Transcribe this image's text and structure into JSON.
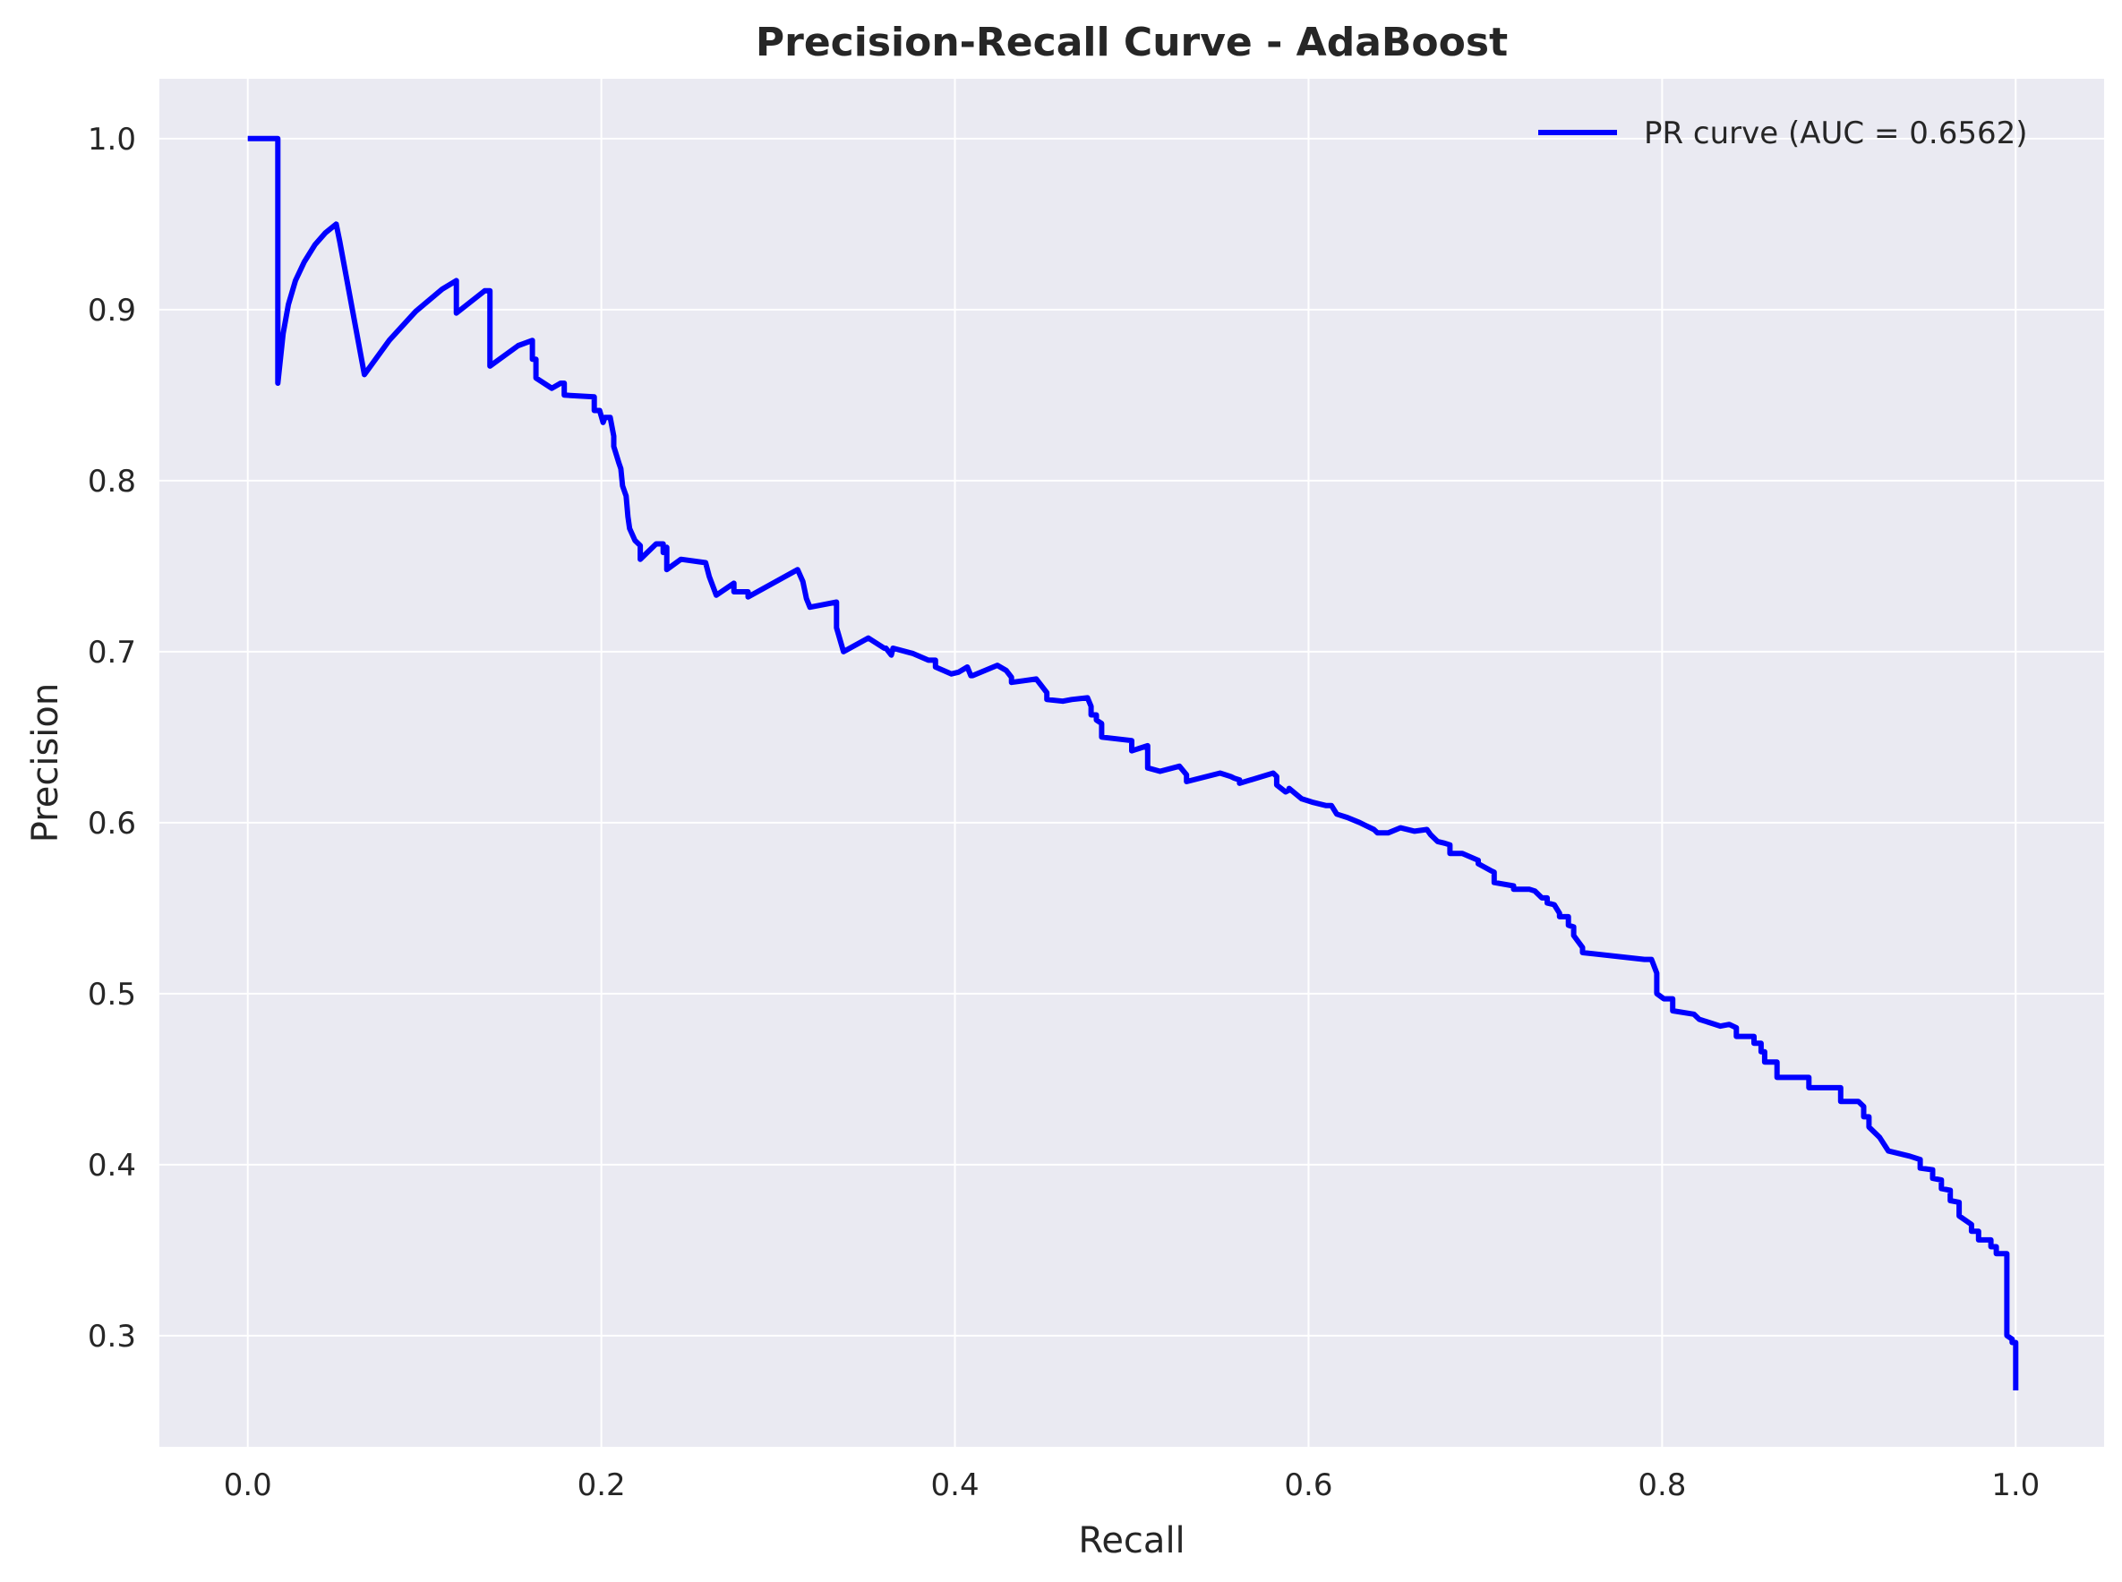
{
  "chart_data": {
    "type": "line",
    "title": "Precision-Recall Curve - AdaBoost",
    "xlabel": "Recall",
    "ylabel": "Precision",
    "xlim": [
      -0.05,
      1.05
    ],
    "ylim": [
      0.235,
      1.035
    ],
    "xticks": [
      "0.0",
      "0.2",
      "0.4",
      "0.6",
      "0.8",
      "1.0"
    ],
    "yticks": [
      "0.3",
      "0.4",
      "0.5",
      "0.6",
      "0.7",
      "0.8",
      "0.9",
      "1.0"
    ],
    "grid": true,
    "legend_position": "top-right",
    "colors": {
      "series": "#0000ff",
      "plot_background": "#eaeaf2",
      "grid": "#ffffff"
    },
    "series": [
      {
        "name": "PR curve (AUC = 0.6562)",
        "x": [
          0.0,
          0.017,
          0.017,
          0.02,
          0.023,
          0.027,
          0.032,
          0.038,
          0.044,
          0.05,
          0.052,
          0.066,
          0.08,
          0.095,
          0.11,
          0.118,
          0.118,
          0.134,
          0.137,
          0.137,
          0.153,
          0.161,
          0.161,
          0.163,
          0.163,
          0.172,
          0.177,
          0.179,
          0.179,
          0.196,
          0.196,
          0.199,
          0.201,
          0.202,
          0.205,
          0.207,
          0.207,
          0.21,
          0.211,
          0.212,
          0.214,
          0.215,
          0.216,
          0.219,
          0.222,
          0.222,
          0.231,
          0.235,
          0.235,
          0.237,
          0.237,
          0.245,
          0.259,
          0.261,
          0.265,
          0.275,
          0.275,
          0.283,
          0.283,
          0.311,
          0.314,
          0.316,
          0.318,
          0.323,
          0.333,
          0.333,
          0.337,
          0.351,
          0.36,
          0.361,
          0.364,
          0.365,
          0.376,
          0.385,
          0.389,
          0.389,
          0.398,
          0.402,
          0.407,
          0.409,
          0.41,
          0.424,
          0.429,
          0.432,
          0.432,
          0.446,
          0.452,
          0.452,
          0.461,
          0.466,
          0.475,
          0.477,
          0.477,
          0.48,
          0.48,
          0.483,
          0.483,
          0.5,
          0.5,
          0.509,
          0.509,
          0.516,
          0.527,
          0.531,
          0.531,
          0.55,
          0.556,
          0.558,
          0.561,
          0.561,
          0.58,
          0.582,
          0.582,
          0.587,
          0.589,
          0.589,
          0.596,
          0.596,
          0.602,
          0.61,
          0.613,
          0.616,
          0.622,
          0.629,
          0.633,
          0.637,
          0.639,
          0.641,
          0.645,
          0.652,
          0.66,
          0.667,
          0.669,
          0.671,
          0.673,
          0.677,
          0.68,
          0.68,
          0.687,
          0.687,
          0.696,
          0.696,
          0.703,
          0.705,
          0.705,
          0.716,
          0.716,
          0.725,
          0.728,
          0.732,
          0.735,
          0.735,
          0.739,
          0.742,
          0.742,
          0.747,
          0.747,
          0.75,
          0.75,
          0.755,
          0.755,
          0.79,
          0.794,
          0.797,
          0.797,
          0.801,
          0.806,
          0.806,
          0.818,
          0.821,
          0.833,
          0.838,
          0.842,
          0.842,
          0.852,
          0.852,
          0.856,
          0.856,
          0.858,
          0.858,
          0.865,
          0.865,
          0.883,
          0.883,
          0.901,
          0.901,
          0.911,
          0.914,
          0.914,
          0.917,
          0.917,
          0.923,
          0.923,
          0.928,
          0.94,
          0.946,
          0.946,
          0.953,
          0.953,
          0.958,
          0.958,
          0.963,
          0.963,
          0.968,
          0.968,
          0.975,
          0.975,
          0.979,
          0.979,
          0.986,
          0.986,
          0.989,
          0.989,
          0.995,
          0.995,
          0.998,
          0.998,
          1.0,
          1.0
        ],
        "y": [
          1.0,
          1.0,
          0.857,
          0.886,
          0.903,
          0.917,
          0.928,
          0.938,
          0.945,
          0.95,
          0.94,
          0.862,
          0.882,
          0.899,
          0.912,
          0.917,
          0.898,
          0.911,
          0.911,
          0.867,
          0.879,
          0.882,
          0.871,
          0.871,
          0.86,
          0.854,
          0.857,
          0.857,
          0.85,
          0.849,
          0.841,
          0.841,
          0.834,
          0.837,
          0.837,
          0.826,
          0.82,
          0.81,
          0.807,
          0.797,
          0.791,
          0.779,
          0.772,
          0.765,
          0.762,
          0.754,
          0.763,
          0.763,
          0.758,
          0.761,
          0.748,
          0.754,
          0.752,
          0.744,
          0.733,
          0.74,
          0.735,
          0.735,
          0.732,
          0.748,
          0.741,
          0.731,
          0.726,
          0.727,
          0.729,
          0.714,
          0.7,
          0.708,
          0.702,
          0.702,
          0.698,
          0.702,
          0.699,
          0.695,
          0.695,
          0.691,
          0.687,
          0.688,
          0.691,
          0.686,
          0.686,
          0.692,
          0.689,
          0.685,
          0.682,
          0.684,
          0.676,
          0.672,
          0.671,
          0.672,
          0.673,
          0.668,
          0.663,
          0.663,
          0.66,
          0.658,
          0.65,
          0.648,
          0.642,
          0.645,
          0.632,
          0.63,
          0.633,
          0.628,
          0.624,
          0.629,
          0.627,
          0.626,
          0.625,
          0.623,
          0.629,
          0.627,
          0.622,
          0.618,
          0.619,
          0.62,
          0.614,
          0.614,
          0.612,
          0.61,
          0.61,
          0.605,
          0.603,
          0.6,
          0.598,
          0.596,
          0.594,
          0.594,
          0.594,
          0.597,
          0.595,
          0.596,
          0.593,
          0.591,
          0.589,
          0.588,
          0.587,
          0.582,
          0.582,
          0.582,
          0.578,
          0.576,
          0.572,
          0.571,
          0.565,
          0.563,
          0.561,
          0.561,
          0.56,
          0.556,
          0.556,
          0.553,
          0.552,
          0.547,
          0.545,
          0.545,
          0.54,
          0.539,
          0.534,
          0.527,
          0.524,
          0.52,
          0.52,
          0.512,
          0.5,
          0.497,
          0.497,
          0.49,
          0.488,
          0.485,
          0.481,
          0.482,
          0.48,
          0.475,
          0.475,
          0.471,
          0.471,
          0.466,
          0.466,
          0.46,
          0.46,
          0.451,
          0.451,
          0.445,
          0.445,
          0.437,
          0.437,
          0.434,
          0.428,
          0.428,
          0.422,
          0.416,
          0.416,
          0.408,
          0.405,
          0.403,
          0.398,
          0.397,
          0.392,
          0.391,
          0.386,
          0.385,
          0.379,
          0.378,
          0.37,
          0.365,
          0.361,
          0.361,
          0.356,
          0.356,
          0.352,
          0.352,
          0.348,
          0.348,
          0.3,
          0.298,
          0.296,
          0.296,
          0.268
        ]
      }
    ]
  }
}
